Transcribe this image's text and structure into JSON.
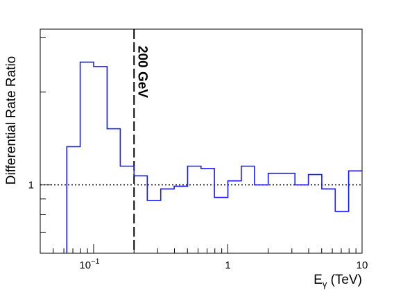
{
  "chart_data": {
    "type": "line",
    "style": "step-histogram",
    "ylabel": "Differential Rate Ratio",
    "xlabel_main": "E",
    "xlabel_sub": "γ",
    "xlabel_unit": " (TeV)",
    "x_scale": "log",
    "y_scale": "log",
    "xlim": [
      0.04,
      10
    ],
    "ylim": [
      0.6,
      3.2
    ],
    "x_ticks": [
      {
        "value": 0.1,
        "base": "10",
        "exp": "−1"
      },
      {
        "value": 1,
        "label": "1"
      },
      {
        "value": 10,
        "label": "10"
      }
    ],
    "y_ticks": [
      {
        "value": 1,
        "label": "1"
      }
    ],
    "series": [
      {
        "color": "#1a1aff",
        "bin_edges": [
          0.0631,
          0.0794,
          0.1,
          0.126,
          0.158,
          0.2,
          0.251,
          0.316,
          0.398,
          0.501,
          0.631,
          0.794,
          1.0,
          1.26,
          1.58,
          2.0,
          2.51,
          3.16,
          3.98,
          5.01,
          6.31,
          7.94,
          10.0
        ],
        "values": [
          1.33,
          2.5,
          2.42,
          1.52,
          1.15,
          1.07,
          0.89,
          0.97,
          0.99,
          1.15,
          1.13,
          0.91,
          1.03,
          1.15,
          1.0,
          1.09,
          1.09,
          1.0,
          1.08,
          0.97,
          0.82,
          1.11
        ]
      }
    ],
    "reference_line": {
      "y": 1,
      "style": "dotted",
      "color": "#000000"
    },
    "vertical_line": {
      "x": 0.2,
      "style": "dashed",
      "color": "#000000"
    },
    "annotation": {
      "text": "200 GeV",
      "x": 0.2,
      "rotation": 90
    },
    "grid": false,
    "legend": "none"
  }
}
